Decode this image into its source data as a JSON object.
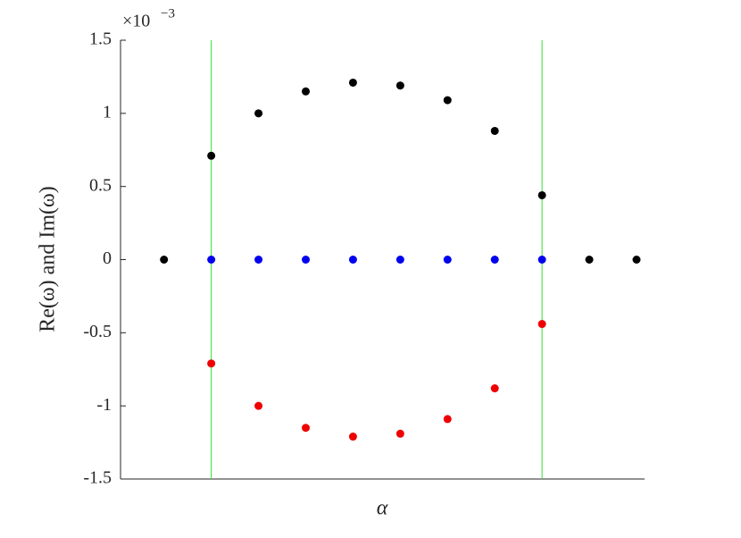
{
  "chart_data": {
    "type": "scatter",
    "x_label": "α",
    "y_label": "Re(ω) and Im(ω)",
    "y_scale_base": "×10",
    "y_scale_exponent": "−3",
    "x": [
      0,
      1,
      2,
      3,
      4,
      5,
      6,
      7,
      8,
      9,
      10
    ],
    "xlim": [
      -0.92,
      10.17
    ],
    "ylim": [
      -1.5,
      1.5
    ],
    "yticks": [
      1.5,
      1,
      0.5,
      0,
      -0.5,
      -1,
      -1.5
    ],
    "vlines": {
      "color": "#33dd33",
      "x": [
        1,
        8
      ]
    },
    "series": [
      {
        "color": "#000000",
        "values": [
          0,
          0.71,
          1.0,
          1.15,
          1.21,
          1.19,
          1.09,
          0.88,
          0.44,
          0,
          0
        ]
      },
      {
        "color": "#ee0000",
        "values": [
          null,
          -0.71,
          -1.0,
          -1.15,
          -1.21,
          -1.19,
          -1.09,
          -0.88,
          -0.44,
          null,
          null
        ]
      },
      {
        "color": "#0000ee",
        "values": [
          null,
          0,
          0,
          0,
          0,
          0,
          0,
          0,
          0,
          null,
          null
        ]
      }
    ]
  }
}
